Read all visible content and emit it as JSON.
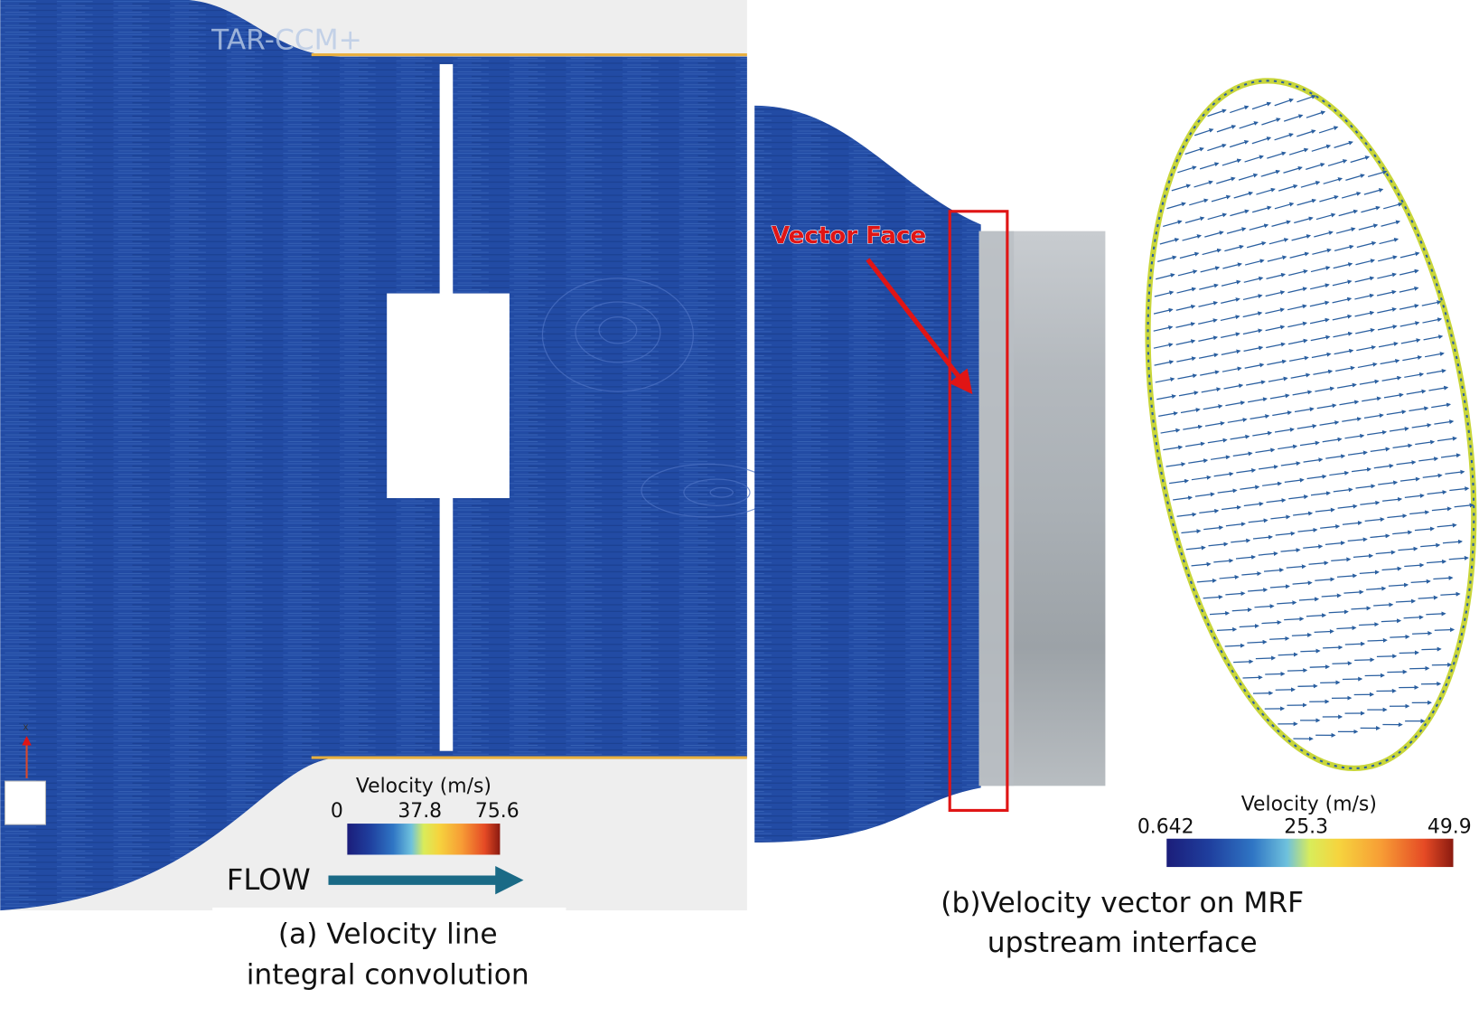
{
  "panel_a": {
    "watermark": "TAR-CCM+",
    "axis_label": "x",
    "legend": {
      "title": "Velocity (m/s)",
      "ticks": [
        0,
        37.8,
        75.6
      ]
    },
    "flow_label": "FLOW",
    "caption": [
      "(a) Velocity line",
      "integral convolution"
    ]
  },
  "panel_b": {
    "annotation": "Vector Face",
    "legend": {
      "title": "Velocity (m/s)",
      "ticks": [
        0.642,
        25.3,
        49.9
      ]
    },
    "caption": [
      "(b)Velocity vector on MRF",
      "upstream interface"
    ]
  }
}
